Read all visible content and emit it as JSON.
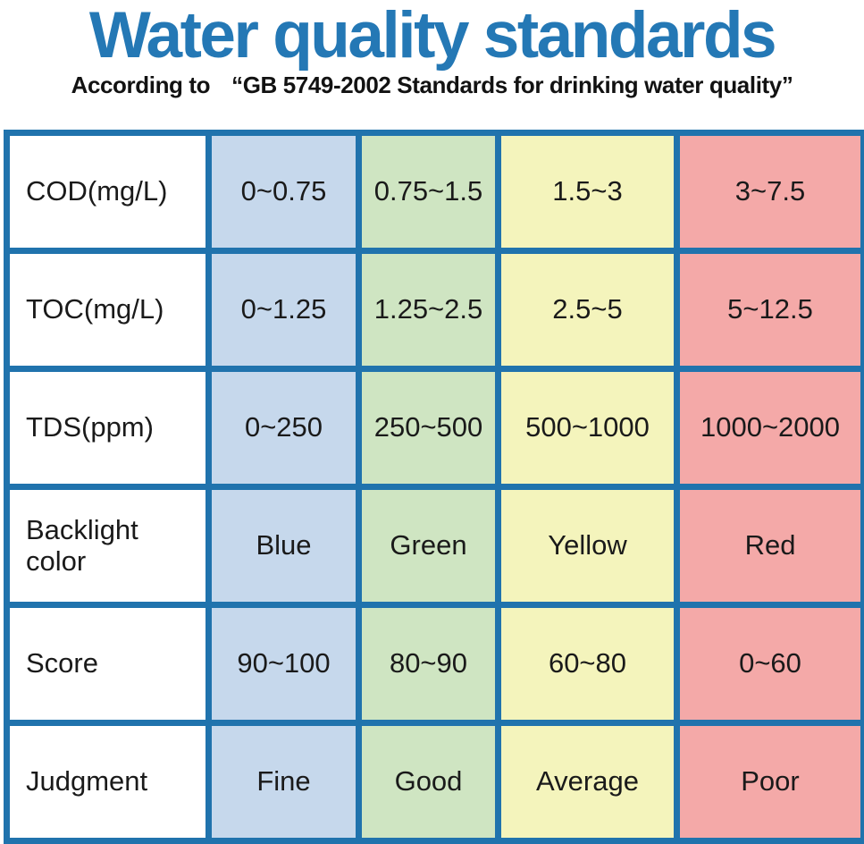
{
  "title": "Water quality standards",
  "subtitle": {
    "prefix": "According to",
    "quoted": "“GB 5749-2002 Standards for drinking water quality”"
  },
  "colors": {
    "title_blue": "#2478b5",
    "border_blue": "#2073ad",
    "column_white": "#ffffff",
    "column_blue": "#c6d8ec",
    "column_green": "#cfe5c2",
    "column_yellow": "#f4f4bc",
    "column_red": "#f4a9a8"
  },
  "chart_data": {
    "type": "table",
    "title": "Water quality standards",
    "subtitle": "According to “GB 5749-2002 Standards for drinking water quality”",
    "column_colors": [
      "white",
      "blue",
      "green",
      "yellow",
      "red"
    ],
    "rows": [
      {
        "label": "COD(mg/L)",
        "values": [
          "0~0.75",
          "0.75~1.5",
          "1.5~3",
          "3~7.5"
        ]
      },
      {
        "label": "TOC(mg/L)",
        "values": [
          "0~1.25",
          "1.25~2.5",
          "2.5~5",
          "5~12.5"
        ]
      },
      {
        "label": "TDS(ppm)",
        "values": [
          "0~250",
          "250~500",
          "500~1000",
          "1000~2000"
        ]
      },
      {
        "label": "Backlight color",
        "values": [
          "Blue",
          "Green",
          "Yellow",
          "Red"
        ]
      },
      {
        "label": "Score",
        "values": [
          "90~100",
          "80~90",
          "60~80",
          "0~60"
        ]
      },
      {
        "label": "Judgment",
        "values": [
          "Fine",
          "Good",
          "Average",
          "Poor"
        ]
      }
    ]
  }
}
